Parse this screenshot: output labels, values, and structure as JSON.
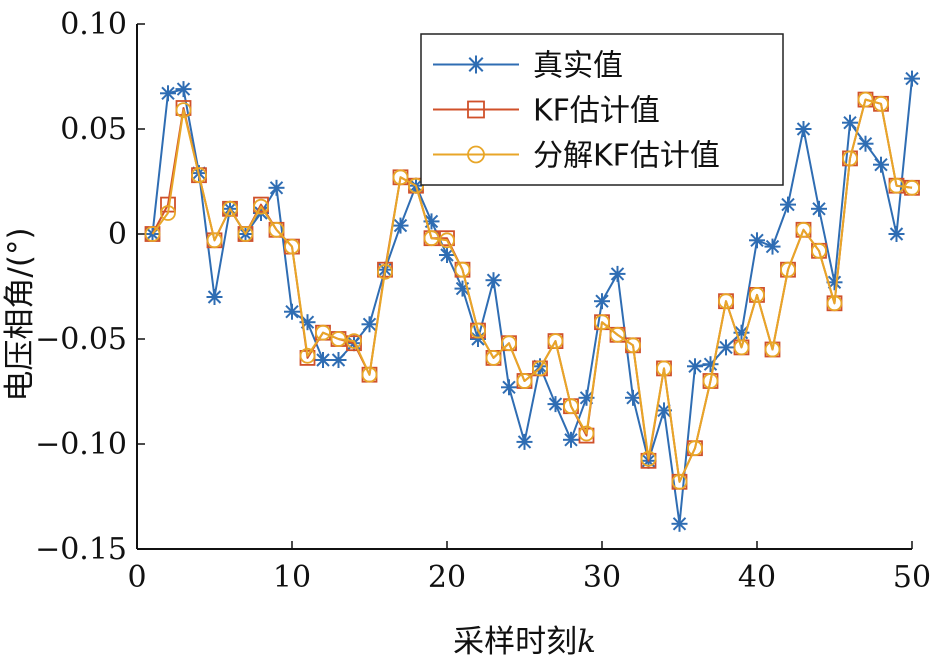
{
  "chart_data": {
    "type": "line",
    "xlabel": "采样时刻",
    "xlabel_var": "k",
    "ylabel": "电压相角/(°)",
    "xlim": [
      0,
      50
    ],
    "ylim": [
      -0.15,
      0.1
    ],
    "xticks": [
      0,
      10,
      20,
      30,
      40,
      50
    ],
    "yticks": [
      0.1,
      0.05,
      0,
      -0.05,
      -0.1,
      -0.15
    ],
    "xtick_labels": [
      "0",
      "10",
      "20",
      "30",
      "40",
      "50"
    ],
    "ytick_labels": [
      "0.10",
      "0.05",
      "0",
      "−0.05",
      "−0.10",
      "−0.15"
    ],
    "grid": false,
    "legend_position": "top-right",
    "x": [
      1,
      2,
      3,
      4,
      5,
      6,
      7,
      8,
      9,
      10,
      11,
      12,
      13,
      14,
      15,
      16,
      17,
      18,
      19,
      20,
      21,
      22,
      23,
      24,
      25,
      26,
      27,
      28,
      29,
      30,
      31,
      32,
      33,
      34,
      35,
      36,
      37,
      38,
      39,
      40,
      41,
      42,
      43,
      44,
      45,
      46,
      47,
      48,
      49,
      50
    ],
    "series": [
      {
        "name": "真实值",
        "color": "#2f6db3",
        "marker": "asterisk",
        "values": [
          0,
          0.067,
          0.069,
          0.029,
          -0.03,
          0.012,
          0,
          0.01,
          0.022,
          -0.037,
          -0.042,
          -0.06,
          -0.06,
          -0.052,
          -0.043,
          -0.017,
          0.004,
          0.023,
          0.006,
          -0.01,
          -0.026,
          -0.05,
          -0.022,
          -0.073,
          -0.099,
          -0.063,
          -0.081,
          -0.098,
          -0.078,
          -0.032,
          -0.019,
          -0.078,
          -0.108,
          -0.084,
          -0.138,
          -0.063,
          -0.062,
          -0.054,
          -0.047,
          -0.003,
          -0.006,
          0.014,
          0.05,
          0.012,
          -0.023,
          0.053,
          0.043,
          0.033,
          0,
          0.074
        ]
      },
      {
        "name": "KF估计值",
        "color": "#d0502a",
        "marker": "square",
        "values": [
          0,
          0.014,
          0.06,
          0.028,
          -0.003,
          0.012,
          0,
          0.014,
          0.002,
          -0.006,
          -0.059,
          -0.047,
          -0.05,
          -0.052,
          -0.067,
          -0.017,
          0.027,
          0.023,
          -0.002,
          -0.002,
          -0.017,
          -0.046,
          -0.059,
          -0.052,
          -0.07,
          -0.064,
          -0.051,
          -0.082,
          -0.096,
          -0.042,
          -0.048,
          -0.053,
          -0.108,
          -0.064,
          -0.118,
          -0.102,
          -0.07,
          -0.032,
          -0.054,
          -0.029,
          -0.055,
          -0.017,
          0.002,
          -0.008,
          -0.033,
          0.036,
          0.064,
          0.062,
          0.023,
          0.022
        ]
      },
      {
        "name": "分解KF估计值",
        "color": "#e8a628",
        "marker": "circle",
        "values": [
          0,
          0.01,
          0.059,
          0.028,
          -0.003,
          0.012,
          0,
          0.013,
          0.002,
          -0.006,
          -0.058,
          -0.047,
          -0.05,
          -0.051,
          -0.067,
          -0.018,
          0.027,
          0.023,
          -0.002,
          -0.003,
          -0.017,
          -0.046,
          -0.059,
          -0.052,
          -0.07,
          -0.064,
          -0.051,
          -0.082,
          -0.095,
          -0.042,
          -0.048,
          -0.053,
          -0.107,
          -0.064,
          -0.118,
          -0.102,
          -0.07,
          -0.032,
          -0.054,
          -0.029,
          -0.055,
          -0.017,
          0.002,
          -0.008,
          -0.033,
          0.036,
          0.064,
          0.062,
          0.023,
          0.022
        ]
      }
    ]
  }
}
